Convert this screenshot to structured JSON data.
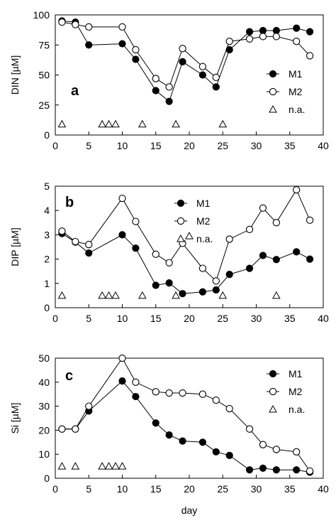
{
  "chart_data": [
    {
      "type": "line",
      "panel_label": "a",
      "ylabel": "DIN [µM]",
      "xlabel": "",
      "xlim": [
        0,
        40
      ],
      "ylim": [
        0,
        100
      ],
      "xticks": [
        "0",
        "5",
        "10",
        "15",
        "20",
        "25",
        "30",
        "35",
        "40"
      ],
      "yticks": [
        "0",
        "25",
        "50",
        "75",
        "100"
      ],
      "legend": [
        "M1",
        "M2",
        "n.a."
      ],
      "series": [
        {
          "name": "M1",
          "marker": "filled-circle",
          "x": [
            1,
            3,
            5,
            10,
            12,
            15,
            17,
            19,
            22,
            24,
            26,
            29,
            31,
            33,
            36,
            38
          ],
          "y": [
            95,
            94,
            75,
            76,
            63,
            37,
            28,
            61,
            50,
            40,
            71,
            86,
            87,
            87,
            89,
            86
          ]
        },
        {
          "name": "M2",
          "marker": "open-circle",
          "x": [
            1,
            3,
            5,
            10,
            12,
            15,
            17,
            19,
            22,
            24,
            26,
            29,
            31,
            33,
            36,
            38
          ],
          "y": [
            94,
            92,
            90,
            90,
            71,
            47,
            40,
            72,
            57,
            48,
            78,
            80,
            82,
            82,
            78,
            66
          ]
        },
        {
          "name": "n.a.",
          "marker": "open-triangle",
          "x": [
            1,
            7,
            8,
            9,
            13,
            18,
            25
          ],
          "y": [
            9,
            9,
            9,
            9,
            9,
            9,
            9
          ]
        }
      ]
    },
    {
      "type": "line",
      "panel_label": "b",
      "ylabel": "DIP [µM]",
      "xlabel": "",
      "xlim": [
        0,
        40
      ],
      "ylim": [
        0,
        5
      ],
      "xticks": [
        "0",
        "5",
        "10",
        "15",
        "20",
        "25",
        "30",
        "35",
        "40"
      ],
      "yticks": [
        "0",
        "1",
        "2",
        "3",
        "4",
        "5"
      ],
      "legend": [
        "M1",
        "M2",
        "n.a."
      ],
      "series": [
        {
          "name": "M1",
          "marker": "filled-circle",
          "x": [
            1,
            3,
            5,
            10,
            12,
            15,
            17,
            19,
            22,
            24,
            26,
            29,
            31,
            33,
            36,
            38
          ],
          "y": [
            3.05,
            2.7,
            2.25,
            3.0,
            2.45,
            0.92,
            1.02,
            0.58,
            0.65,
            0.73,
            1.37,
            1.62,
            2.15,
            1.98,
            2.3,
            2.0
          ]
        },
        {
          "name": "M2",
          "marker": "open-circle",
          "x": [
            1,
            3,
            5,
            10,
            12,
            15,
            17,
            19,
            22,
            24,
            26,
            29,
            31,
            33,
            36,
            38
          ],
          "y": [
            3.15,
            2.72,
            2.6,
            4.5,
            3.55,
            2.2,
            1.85,
            2.65,
            1.62,
            1.1,
            2.82,
            3.22,
            4.1,
            3.5,
            4.85,
            3.6
          ]
        },
        {
          "name": "n.a.",
          "marker": "open-triangle",
          "x": [
            1,
            7,
            8,
            9,
            13,
            18,
            20,
            25,
            33
          ],
          "y": [
            0.5,
            0.5,
            0.5,
            0.5,
            0.5,
            0.5,
            2.95,
            0.5,
            0.5
          ]
        }
      ]
    },
    {
      "type": "line",
      "panel_label": "c",
      "ylabel": "Si [µM]",
      "xlabel": "day",
      "xlim": [
        0,
        40
      ],
      "ylim": [
        0,
        50
      ],
      "xticks": [
        "0",
        "5",
        "10",
        "15",
        "20",
        "25",
        "30",
        "35",
        "40"
      ],
      "yticks": [
        "0",
        "10",
        "20",
        "30",
        "40",
        "50"
      ],
      "legend": [
        "M1",
        "M2",
        "n.a."
      ],
      "series": [
        {
          "name": "M1",
          "marker": "filled-circle",
          "x": [
            1,
            3,
            5,
            10,
            12,
            15,
            17,
            19,
            22,
            24,
            26,
            29,
            31,
            33,
            36,
            38
          ],
          "y": [
            20.5,
            20.5,
            28,
            40.5,
            34,
            23,
            18,
            15.5,
            15,
            11,
            9.5,
            3.5,
            4.2,
            3.5,
            3.5,
            2.5
          ]
        },
        {
          "name": "M2",
          "marker": "open-circle",
          "x": [
            1,
            3,
            5,
            10,
            12,
            15,
            17,
            19,
            22,
            24,
            26,
            29,
            31,
            33,
            36,
            38
          ],
          "y": [
            20.5,
            20.5,
            30,
            50,
            40,
            36,
            35.5,
            35.5,
            35,
            32.5,
            29,
            20.5,
            14,
            12,
            11,
            3
          ]
        },
        {
          "name": "n.a.",
          "marker": "open-triangle",
          "x": [
            1,
            3,
            7,
            8,
            9,
            10
          ],
          "y": [
            5,
            5,
            5,
            5,
            5,
            5
          ]
        }
      ]
    }
  ]
}
